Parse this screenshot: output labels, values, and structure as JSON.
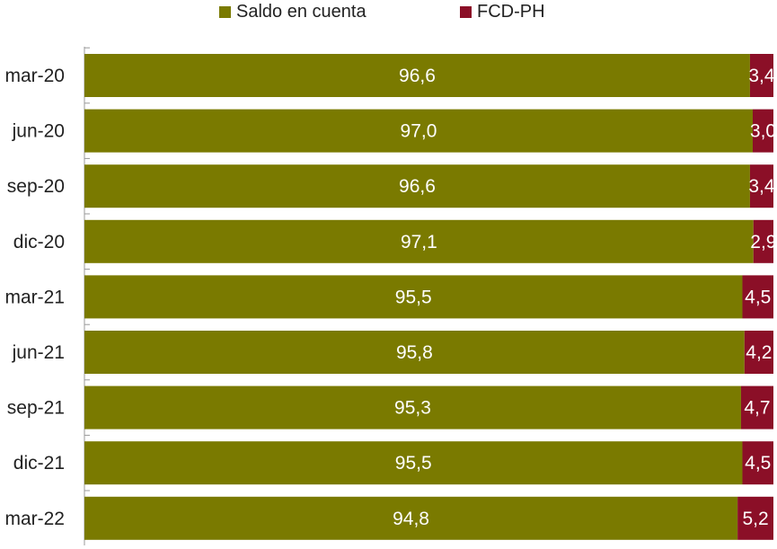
{
  "legend": [
    {
      "label": "Saldo en cuenta",
      "color": "#7a7a00"
    },
    {
      "label": "FCD-PH",
      "color": "#8b0f27"
    }
  ],
  "chart_data": {
    "type": "bar",
    "orientation": "horizontal",
    "stacked": true,
    "title": "",
    "xlabel": "",
    "ylabel": "",
    "categories": [
      "mar-20",
      "jun-20",
      "sep-20",
      "dic-20",
      "mar-21",
      "jun-21",
      "sep-21",
      "dic-21",
      "mar-22"
    ],
    "series": [
      {
        "name": "Saldo en cuenta",
        "color": "#7a7a00",
        "values": [
          96.6,
          97.0,
          96.6,
          97.1,
          95.5,
          95.8,
          95.3,
          95.5,
          94.8
        ],
        "labels": [
          "96,6",
          "97,0",
          "96,6",
          "97,1",
          "95,5",
          "95,8",
          "95,3",
          "95,5",
          "94,8"
        ]
      },
      {
        "name": "FCD-PH",
        "color": "#8b0f27",
        "values": [
          3.4,
          3.0,
          3.4,
          2.9,
          4.5,
          4.2,
          4.7,
          4.5,
          5.2
        ],
        "labels": [
          "3,4",
          "3,0",
          "3,4",
          "2,9",
          "4,5",
          "4,2",
          "4,7",
          "4,5",
          "5,2"
        ]
      }
    ],
    "xlim": [
      0,
      100
    ],
    "grid": false,
    "legend_position": "top"
  }
}
